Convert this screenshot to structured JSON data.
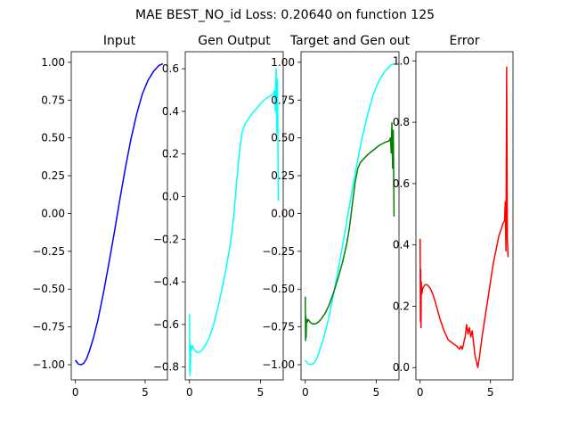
{
  "figure": {
    "suptitle": "MAE BEST_NO_id Loss: 0.20640 on function 125"
  },
  "chart_data": [
    {
      "type": "line",
      "title": "Input",
      "xlim": [
        -0.3,
        6.6
      ],
      "ylim": [
        -1.1,
        1.07
      ],
      "xticks": [
        0,
        5
      ],
      "yticks": [
        -1.0,
        -0.75,
        -0.5,
        -0.25,
        0.0,
        0.25,
        0.5,
        0.75,
        1.0
      ],
      "ytick_labels": [
        "−1.00",
        "−0.75",
        "−0.50",
        "−0.25",
        "0.00",
        "0.25",
        "0.50",
        "0.75",
        "1.00"
      ],
      "series": [
        {
          "color": "#0000ff",
          "x": [
            0,
            0.2,
            0.4,
            0.6,
            0.8,
            1.0,
            1.3,
            1.6,
            2.0,
            2.4,
            2.8,
            3.2,
            3.6,
            4.0,
            4.4,
            4.8,
            5.2,
            5.6,
            6.0,
            6.28
          ],
          "y": [
            -0.97,
            -0.995,
            -1.0,
            -0.99,
            -0.96,
            -0.91,
            -0.82,
            -0.71,
            -0.53,
            -0.33,
            -0.12,
            0.1,
            0.31,
            0.5,
            0.66,
            0.79,
            0.88,
            0.94,
            0.98,
            0.99
          ]
        }
      ]
    },
    {
      "type": "line",
      "title": "Gen Output",
      "xlim": [
        -0.3,
        6.6
      ],
      "ylim": [
        -0.86,
        0.68
      ],
      "xticks": [
        0,
        5
      ],
      "yticks": [
        -0.8,
        -0.6,
        -0.4,
        -0.2,
        0.0,
        0.2,
        0.4,
        0.6
      ],
      "ytick_labels": [
        "−0.8",
        "−0.6",
        "−0.4",
        "−0.2",
        "0.0",
        "0.2",
        "0.4",
        "0.6"
      ],
      "series": [
        {
          "color": "#00ffff",
          "x": [
            0.0,
            0.02,
            0.04,
            0.06,
            0.08,
            0.12,
            0.2,
            0.35,
            0.5,
            0.7,
            0.9,
            1.1,
            1.4,
            1.7,
            2.0,
            2.3,
            2.6,
            2.9,
            3.1,
            3.3,
            3.5,
            3.7,
            3.9,
            4.1,
            4.4,
            4.8,
            5.2,
            5.6,
            5.9,
            6.0,
            6.05,
            6.1,
            6.15,
            6.2,
            6.25
          ],
          "y": [
            -0.55,
            -0.84,
            -0.68,
            -0.82,
            -0.7,
            -0.72,
            -0.7,
            -0.72,
            -0.73,
            -0.73,
            -0.72,
            -0.7,
            -0.66,
            -0.6,
            -0.52,
            -0.43,
            -0.33,
            -0.21,
            -0.1,
            0.05,
            0.2,
            0.3,
            0.34,
            0.36,
            0.39,
            0.42,
            0.45,
            0.47,
            0.48,
            0.5,
            0.4,
            0.6,
            0.3,
            0.55,
            -0.02
          ]
        }
      ]
    },
    {
      "type": "line",
      "title": "Target and Gen out",
      "xlim": [
        -0.3,
        6.6
      ],
      "ylim": [
        -1.1,
        1.07
      ],
      "xticks": [
        0,
        5
      ],
      "yticks": [
        -1.0,
        -0.75,
        -0.5,
        -0.25,
        0.0,
        0.25,
        0.5,
        0.75,
        1.0
      ],
      "ytick_labels": [
        "−1.00",
        "−0.75",
        "−0.50",
        "−0.25",
        "0.00",
        "0.25",
        "0.50",
        "0.75",
        "1.00"
      ],
      "series": [
        {
          "color": "#00ffff",
          "x": [
            0,
            0.2,
            0.4,
            0.6,
            0.8,
            1.0,
            1.3,
            1.6,
            2.0,
            2.4,
            2.8,
            3.2,
            3.6,
            4.0,
            4.4,
            4.8,
            5.2,
            5.6,
            6.0,
            6.28
          ],
          "y": [
            -0.97,
            -0.995,
            -1.0,
            -0.99,
            -0.96,
            -0.91,
            -0.82,
            -0.71,
            -0.53,
            -0.33,
            -0.12,
            0.1,
            0.31,
            0.5,
            0.66,
            0.79,
            0.88,
            0.94,
            0.98,
            0.99
          ]
        },
        {
          "color": "#008000",
          "x": [
            0.0,
            0.02,
            0.04,
            0.06,
            0.08,
            0.12,
            0.2,
            0.35,
            0.5,
            0.7,
            0.9,
            1.1,
            1.4,
            1.7,
            2.0,
            2.3,
            2.6,
            2.9,
            3.1,
            3.3,
            3.5,
            3.7,
            3.9,
            4.1,
            4.4,
            4.8,
            5.2,
            5.6,
            5.9,
            6.0,
            6.05,
            6.1,
            6.15,
            6.2,
            6.25
          ],
          "y": [
            -0.55,
            -0.84,
            -0.68,
            -0.82,
            -0.7,
            -0.72,
            -0.7,
            -0.72,
            -0.73,
            -0.73,
            -0.72,
            -0.7,
            -0.66,
            -0.6,
            -0.52,
            -0.43,
            -0.33,
            -0.21,
            -0.1,
            0.05,
            0.2,
            0.3,
            0.34,
            0.36,
            0.39,
            0.42,
            0.45,
            0.47,
            0.48,
            0.5,
            0.4,
            0.6,
            0.3,
            0.55,
            -0.02
          ]
        }
      ]
    },
    {
      "type": "line",
      "title": "Error",
      "xlim": [
        -0.3,
        6.6
      ],
      "ylim": [
        -0.04,
        1.03
      ],
      "xticks": [
        0,
        5
      ],
      "yticks": [
        0.0,
        0.2,
        0.4,
        0.6,
        0.8,
        1.0
      ],
      "ytick_labels": [
        "0.0",
        "0.2",
        "0.4",
        "0.6",
        "0.8",
        "1.0"
      ],
      "series": [
        {
          "color": "#ff0000",
          "x": [
            0.0,
            0.02,
            0.04,
            0.06,
            0.08,
            0.12,
            0.2,
            0.35,
            0.5,
            0.7,
            0.9,
            1.1,
            1.4,
            1.7,
            2.0,
            2.3,
            2.6,
            2.8,
            2.9,
            3.0,
            3.1,
            3.2,
            3.3,
            3.4,
            3.5,
            3.6,
            3.7,
            3.8,
            3.9,
            4.0,
            4.1,
            4.2,
            4.4,
            4.8,
            5.2,
            5.6,
            5.9,
            6.0,
            6.05,
            6.1,
            6.15,
            6.2,
            6.25
          ],
          "y": [
            0.42,
            0.15,
            0.32,
            0.13,
            0.28,
            0.24,
            0.26,
            0.27,
            0.27,
            0.26,
            0.24,
            0.21,
            0.16,
            0.12,
            0.09,
            0.08,
            0.07,
            0.06,
            0.07,
            0.06,
            0.08,
            0.1,
            0.14,
            0.11,
            0.13,
            0.1,
            0.12,
            0.08,
            0.04,
            0.02,
            0.0,
            0.03,
            0.1,
            0.22,
            0.34,
            0.43,
            0.47,
            0.48,
            0.54,
            0.38,
            0.98,
            0.42,
            0.36
          ]
        }
      ]
    }
  ]
}
